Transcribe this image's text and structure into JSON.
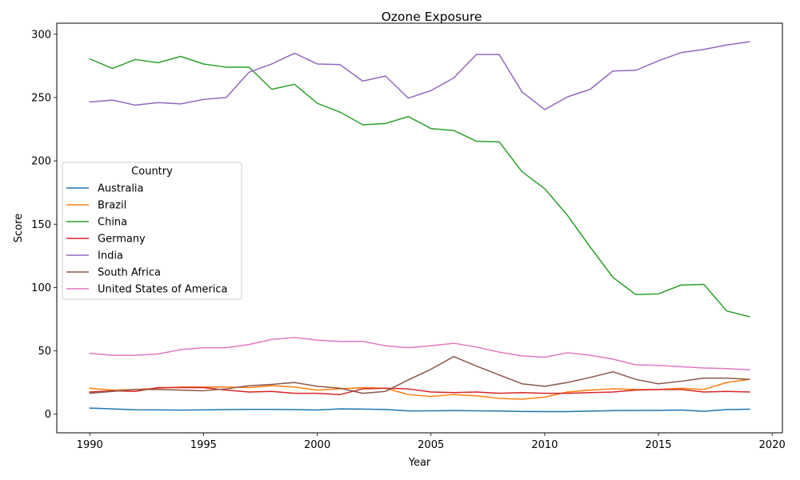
{
  "chart_data": {
    "type": "line",
    "title": "Ozone Exposure",
    "xlabel": "Year",
    "ylabel": "Score",
    "xlim": [
      1988.55,
      2020.45
    ],
    "ylim": [
      -14.7,
      308.7
    ],
    "xticks": [
      1990,
      1995,
      2000,
      2005,
      2010,
      2015,
      2020
    ],
    "yticks": [
      0,
      50,
      100,
      150,
      200,
      250,
      300
    ],
    "grid": false,
    "legend": {
      "title": "Country",
      "placement": "center-left"
    },
    "x": [
      1990,
      1991,
      1992,
      1993,
      1994,
      1995,
      1996,
      1997,
      1998,
      1999,
      2000,
      2001,
      2002,
      2003,
      2004,
      2005,
      2006,
      2007,
      2008,
      2009,
      2010,
      2011,
      2012,
      2013,
      2014,
      2015,
      2016,
      2017,
      2018,
      2019
    ],
    "series": [
      {
        "name": "Australia",
        "color": "#1f77b4",
        "values": [
          4.8,
          4.2,
          3.5,
          3.4,
          3.2,
          3.4,
          3.6,
          3.8,
          3.8,
          3.6,
          3.3,
          4.2,
          4.0,
          3.7,
          2.6,
          2.7,
          2.8,
          2.7,
          2.5,
          2.1,
          2.0,
          2.0,
          2.4,
          2.8,
          2.9,
          3.0,
          3.3,
          2.3,
          3.6,
          3.9
        ]
      },
      {
        "name": "Brazil",
        "color": "#ff7f0e",
        "values": [
          20.5,
          19.0,
          19.5,
          20.5,
          21.5,
          21.5,
          21.5,
          21.0,
          22.5,
          21.5,
          19.0,
          20.0,
          21.0,
          20.5,
          15.5,
          14.0,
          15.5,
          14.5,
          12.5,
          11.8,
          13.5,
          17.5,
          19.0,
          20.0,
          19.5,
          19.5,
          20.5,
          19.5,
          25.0,
          27.5
        ]
      },
      {
        "name": "China",
        "color": "#2ca02c",
        "values": [
          280.5,
          273.0,
          280.0,
          277.5,
          282.5,
          276.5,
          274.0,
          274.0,
          256.5,
          260.5,
          245.5,
          238.5,
          228.5,
          229.5,
          235.0,
          225.5,
          224.0,
          215.5,
          215.0,
          191.5,
          178.0,
          157.0,
          132.0,
          108.0,
          94.5,
          95.0,
          102.0,
          102.5,
          81.5,
          77.0
        ]
      },
      {
        "name": "Germany",
        "color": "#d62728",
        "values": [
          17.5,
          18.5,
          18.0,
          21.0,
          21.0,
          21.0,
          19.0,
          17.5,
          18.0,
          16.5,
          16.5,
          15.5,
          20.0,
          20.5,
          20.0,
          17.5,
          17.0,
          17.5,
          16.5,
          17.0,
          16.5,
          16.5,
          17.0,
          17.5,
          19.0,
          19.5,
          19.5,
          17.5,
          18.0,
          17.5
        ]
      },
      {
        "name": "India",
        "color": "#9467bd",
        "values": [
          246.5,
          248.0,
          244.0,
          246.0,
          245.0,
          248.5,
          250.0,
          270.0,
          276.5,
          285.0,
          276.5,
          276.0,
          263.0,
          267.0,
          249.5,
          255.5,
          265.5,
          284.0,
          284.0,
          254.5,
          240.5,
          250.5,
          256.5,
          271.0,
          271.5,
          279.0,
          285.5,
          288.0,
          291.5,
          294.0
        ]
      },
      {
        "name": "South Africa",
        "color": "#8c564b",
        "values": [
          16.5,
          18.0,
          19.5,
          19.5,
          19.0,
          18.5,
          20.0,
          22.5,
          23.5,
          25.0,
          22.0,
          20.5,
          16.5,
          18.0,
          27.0,
          35.5,
          45.5,
          38.0,
          31.0,
          24.0,
          22.0,
          25.0,
          29.0,
          33.5,
          27.5,
          24.0,
          26.0,
          28.5,
          28.5,
          27.5
        ]
      },
      {
        "name": "United States of America",
        "color": "#e377c2",
        "values": [
          48.0,
          46.5,
          46.5,
          47.5,
          51.0,
          52.5,
          52.5,
          55.0,
          59.0,
          60.5,
          58.5,
          57.5,
          57.5,
          54.0,
          52.5,
          54.0,
          56.0,
          53.0,
          49.0,
          46.0,
          45.0,
          48.5,
          46.5,
          43.5,
          39.0,
          38.5,
          37.5,
          36.5,
          36.0,
          35.0
        ]
      }
    ]
  }
}
